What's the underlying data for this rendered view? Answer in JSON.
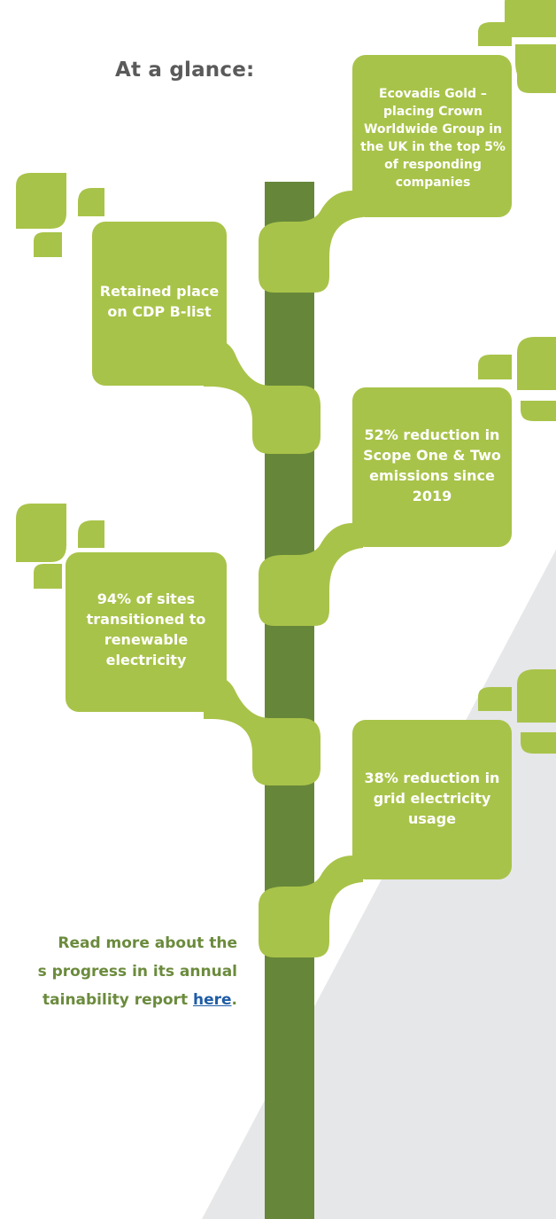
{
  "heading": "At a glance:",
  "milestones": [
    {
      "text": "Ecovadis Gold – placing Crown Worldwide Group in the UK in the top 5% of responding companies"
    },
    {
      "text": "Retained place on CDP B-list"
    },
    {
      "text": "52% reduction in Scope One & Two emissions since 2019"
    },
    {
      "text": "94% of sites transitioned to renewable electricity"
    },
    {
      "text": "38% reduction in grid electricity usage"
    }
  ],
  "footer": {
    "line1": "Read more about the",
    "line2": "s progress in its annual",
    "line3_prefix": "tainability report ",
    "link": "here",
    "line3_suffix": "."
  },
  "colors": {
    "leaf": "#a8c349",
    "trunk": "#66873a",
    "shade": "#e6e7e9",
    "footer_text": "#6b8b3d",
    "link": "#1f5da6"
  }
}
